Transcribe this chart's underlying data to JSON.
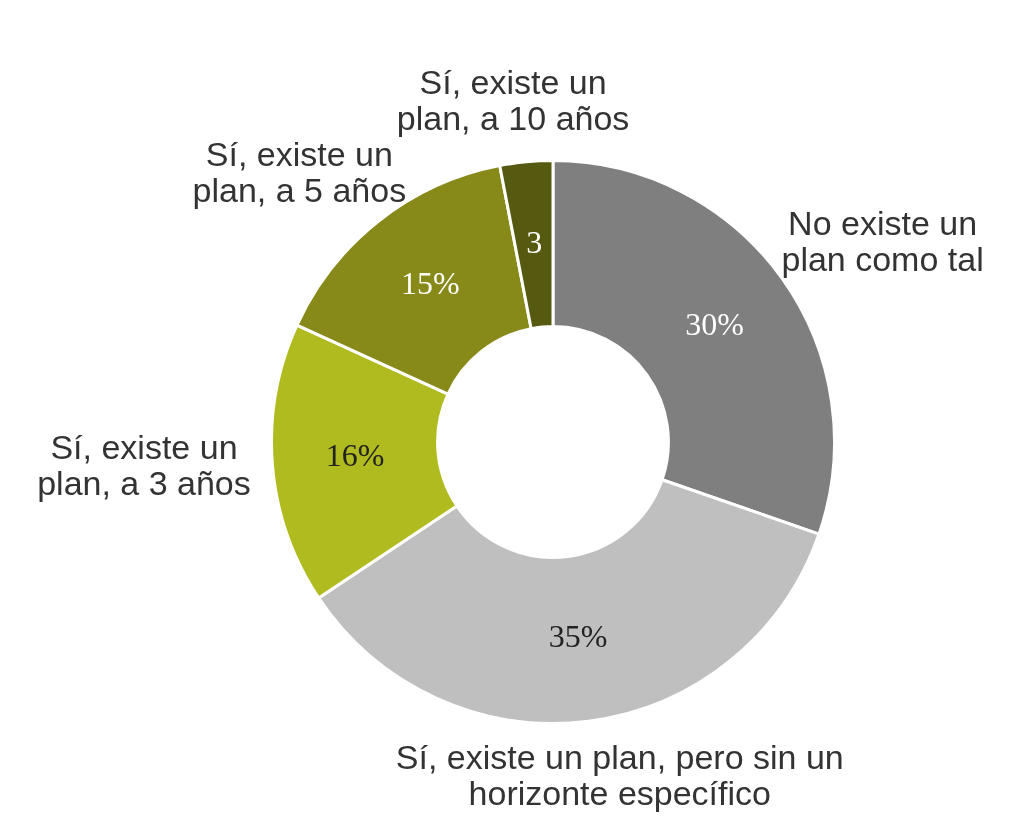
{
  "chart_data": {
    "type": "donut",
    "categories": [
      "No existe un plan como tal",
      "Sí, existe un plan, pero sin un horizonte específico",
      "Sí, existe un plan, a 3 años",
      "Sí, existe un plan, a 5 años",
      "Sí, existe un plan, a 10 años"
    ],
    "values": [
      30,
      35,
      16,
      15,
      3
    ],
    "colors": [
      "#7f7f7f",
      "#bfbfbf",
      "#b0bb20",
      "#878a18",
      "#555a10"
    ],
    "value_labels": [
      "30%",
      "35%",
      "16%",
      "15%",
      "3"
    ]
  }
}
